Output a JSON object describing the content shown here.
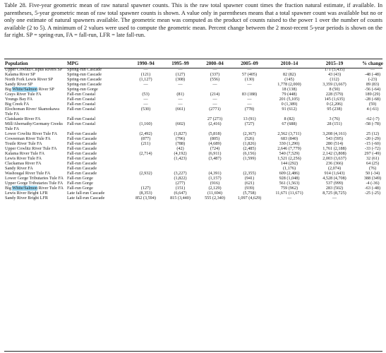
{
  "caption": "Table 28. Five-year geometric mean of raw natural spawner counts. This is the raw total spawner count times the fraction natural estimate, if available. In parentheses, 5-year geometric mean of raw total spawner counts is shown. A value only in parentheses means that a total spawner count was available but no or only one estimate of natural spawners available. The geometric mean was computed as the product of counts raised to the power 1 over the number of counts available (2 to 5). A minimum of 2 values were used to compute the geometric mean. Percent change between the 2 most-recent 5-year periods is shown on the far right. SP = spring-run, FA = fall-run, LFR = late fall-run.",
  "headers": [
    "Population",
    "MPG",
    "1990–94",
    "1995–99",
    "2000–04",
    "2005–09",
    "2010–14",
    "2015–19",
    "% change"
  ],
  "highlight_term": "White/Salmon",
  "rows": [
    {
      "pop": "Upper Cowlitz/Cispus Rivers SP",
      "mpg": "Spring-run Cascade",
      "v": [
        "—",
        "—",
        "—",
        "—",
        "—",
        "171 (5,435)",
        "—"
      ],
      "g": 1
    },
    {
      "pop": "Kalama River SP",
      "mpg": "Spring-run Cascade",
      "v": [
        "(121)",
        "(127)",
        "(337)",
        "57 (405)",
        "82 (82)",
        "43 (43)",
        "-48 (-48)"
      ],
      "g": 0
    },
    {
      "pop": "North Fork Lewis River SP",
      "mpg": "Spring-run Cascade",
      "v": [
        "(1,127)",
        "(308)",
        "(556)",
        "(130)",
        "(145)",
        "(112)",
        "(-23)"
      ],
      "g": 0
    },
    {
      "pop": "Sandy River SP",
      "mpg": "Spring-run Cascade",
      "v": [
        "—",
        "—",
        "—",
        "—",
        "1,778 (2,000)",
        "3,359 (3,667)",
        "89 (83)"
      ],
      "g": 0
    },
    {
      "pop_pre": "Big ",
      "pop_hl": "White/Salmon",
      "pop_post": " River SP",
      "mpg": "Spring-run Gorge",
      "v": [
        "",
        "",
        "",
        "",
        "18 (138)",
        "8 (50)",
        "-56 (-64)"
      ],
      "g": 1
    },
    {
      "pop": "Grays River Tule FA",
      "mpg": "Fall-run Coastal",
      "v": [
        "(53)",
        "(81)",
        "(214)",
        "83 (188)",
        "79 (448)",
        "228 (579)",
        "189 (29)"
      ],
      "g": 1
    },
    {
      "pop": "Youngs Bay FA",
      "mpg": "Fall-run Coastal",
      "v": [
        "—",
        "—",
        "—",
        "—",
        "201 (5,105)",
        "145 (1,635)",
        "-28 (-68)"
      ],
      "g": 0
    },
    {
      "pop": "Big Creek FA",
      "mpg": "Fall-run Coastal",
      "v": [
        "—",
        "—",
        "—",
        "—",
        "0 (1,389)",
        "0 (2,206)",
        "(59)"
      ],
      "g": 0
    },
    {
      "pop": "Elochoman River/ Skamokawa Tule FA",
      "mpg": "Fall-run Coastal",
      "v": [
        "(530)",
        "(661)",
        "(2771)",
        "(778)",
        "91 (612)",
        "95 (238)",
        "4 (-61)"
      ],
      "g": 0
    },
    {
      "pop": "Clatskanie River FA",
      "mpg": "Fall-run Coastal",
      "v": [
        "",
        "",
        "27 (273)",
        "13 (91)",
        "8 (82)",
        "3 (76)",
        "-62 (-7)"
      ],
      "g": 0
    },
    {
      "pop": "Mill/Abernathy/Germany Creeks Tule FA",
      "mpg": "Fall-run Coastal",
      "v": [
        "(1,160)",
        "(602)",
        "(2,416)",
        "(727)",
        "67 (688)",
        "28 (151)",
        "-58 (-78)"
      ],
      "g": 0
    },
    {
      "pop": "Lower Cowlitz River Tule FA",
      "mpg": "Fall-run Cascade",
      "v": [
        "(2,492)",
        "(1,827)",
        "(5,818)",
        "(2,367)",
        "2,562 (3,711)",
        "3,208 (4,161)",
        "25 (12)"
      ],
      "g": 1
    },
    {
      "pop": "Coweeman River Tule FA",
      "mpg": "Fall-run Cascade",
      "v": [
        "(877)",
        "(796)",
        "(805)",
        "(526)",
        "683 (840)",
        "543 (595)",
        "-20 (-29)"
      ],
      "g": 0
    },
    {
      "pop": "Toutle River Tule FA",
      "mpg": "Fall-run Cascade",
      "v": [
        "(211)",
        "(788)",
        "(4,689)",
        "(1,826)",
        "330 (1,290)",
        "280 (514)",
        "-15 (-60)"
      ],
      "g": 0
    },
    {
      "pop": "Upper Cowlitz River Tule FA",
      "mpg": "Fall-run Cascade",
      "v": [
        "",
        "(42)",
        "(724)",
        "(2,485)",
        "2,646 (7,779)",
        "1,761 (2,188)",
        "-33 (-72)"
      ],
      "g": 0
    },
    {
      "pop": "Kalama River Tule FA",
      "mpg": "Fall-run Cascade",
      "v": [
        "(2,714)",
        "(4,192)",
        "(6,911)",
        "(6,156)",
        "540 (7,529)",
        "2,142 (3,808)",
        "297 (-49)"
      ],
      "g": 0
    },
    {
      "pop": "Lewis River Tule FA",
      "mpg": "Fall-run Cascade",
      "v": [
        "",
        "(1,423)",
        "(3,487)",
        "(1,599)",
        "1,521 (2,256)",
        "2,003 (3,637)",
        "32 (61)"
      ],
      "g": 0
    },
    {
      "pop": "Clackamas River FA",
      "mpg": "Fall-run Cascade",
      "v": [
        "",
        "",
        "",
        "",
        "144 (292)",
        "236 (366)",
        "64 (25)"
      ],
      "g": 0
    },
    {
      "pop": "Sandy River FA",
      "mpg": "Fall-run Cascade",
      "v": [
        "",
        "",
        "",
        "",
        "(1,176)",
        "(2,074)",
        "(76)"
      ],
      "g": 0
    },
    {
      "pop": "Washougal River Tule FA",
      "mpg": "Fall-run Cascade",
      "v": [
        "(2,932)",
        "(3,227)",
        "(4,391)",
        "(2,355)",
        "609 (2,486)",
        "914 (1,643)",
        "50 (-34)"
      ],
      "g": 0
    },
    {
      "pop": "Lower Gorge Tributaries Tule FA",
      "mpg": "Fall-run Gorge",
      "v": [
        "",
        "(1,822)",
        "(1,157)",
        "(941)",
        "928 (1,048)",
        "4,528 (4,708)",
        "388 (349)"
      ],
      "g": 1
    },
    {
      "pop": "Upper Gorge Tributaries Tule FA",
      "mpg": "Fall-run Gorge",
      "v": [
        "",
        "(277)",
        "(916)",
        "(621)",
        "561 (1,563)",
        "537 (999)",
        "-4 (-36)"
      ],
      "g": 0
    },
    {
      "pop_pre": "Big ",
      "pop_hl": "White/Salmon",
      "pop_post": " River Tule FA",
      "mpg": "Fall-run Gorge",
      "v": [
        "(127)",
        "(151)",
        "(2,129)",
        "(939)",
        "759 (962)",
        "283 (502)",
        "-63 (-48)"
      ],
      "g": 0
    },
    {
      "pop": "Lewis River Bright LFR",
      "mpg": "Late fall-run Cascade",
      "v": [
        "(8,353)",
        "(6,647)",
        "(11,694)",
        "(5,758)",
        "11,671 (11,671)",
        "8,725 (8,725)",
        "-25 (-25)"
      ],
      "g": 1
    },
    {
      "pop": "Sandy River Bright LFR",
      "mpg": "Late fall-run Cascade",
      "v": [
        "852 (3,594)",
        "815 (3,440)",
        "555 (2,340)",
        "1,097 (4,629)",
        "—",
        "—",
        ""
      ],
      "g": 1
    }
  ]
}
